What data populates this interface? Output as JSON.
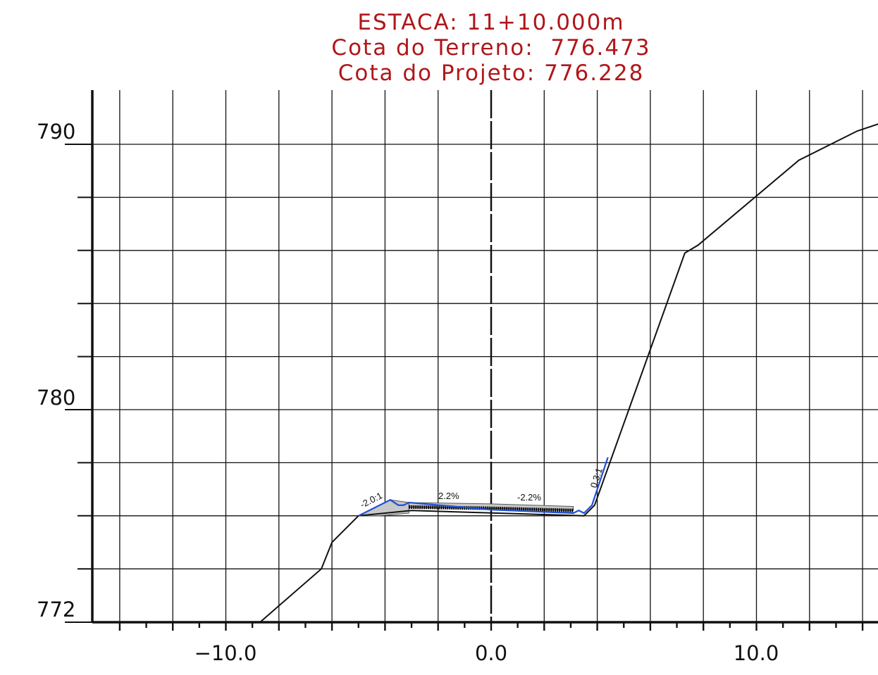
{
  "header": {
    "station": "ESTACA: 11+10.000m",
    "terrain_elevation": "Cota do Terreno:  776.473",
    "design_elevation": "Cota do Projeto: 776.228"
  },
  "axes": {
    "y_labels": [
      "790",
      "780",
      "772"
    ],
    "x_labels": [
      "−10.0",
      "0.0",
      "10.0"
    ]
  },
  "annotations": {
    "left_slope": "-2.0:1",
    "left_cross_slope": "2.2%",
    "right_cross_slope": "-2.2%",
    "right_slope": "0.3:1"
  },
  "colors": {
    "title": "#b0161a",
    "grid": "#111111",
    "terrain": "#111111",
    "design": "#1f4fd8",
    "pavement_fill": "#c8c8c8"
  },
  "chart_data": {
    "type": "cross-section",
    "xlim": [
      -15,
      15
    ],
    "ylim": [
      772,
      792
    ],
    "x_ticks": [
      -10,
      0,
      10
    ],
    "y_ticks": [
      772,
      780,
      790
    ],
    "grid": true,
    "terrain": {
      "x": [
        -8.7,
        -6.4,
        -6.0,
        -5.0,
        -3.0,
        3.5,
        3.9,
        7.3,
        7.8,
        11.6,
        13.8,
        15.0
      ],
      "y": [
        772.0,
        774.0,
        775.0,
        776.0,
        776.2,
        776.0,
        776.4,
        785.9,
        786.2,
        789.4,
        790.5,
        790.9
      ]
    },
    "design": {
      "x": [
        -5.0,
        -3.8,
        -3.5,
        -3.3,
        -3.1,
        0.0,
        3.1,
        3.3,
        3.5,
        3.8,
        4.4
      ],
      "y": [
        776.0,
        776.6,
        776.4,
        776.4,
        776.5,
        776.228,
        776.1,
        776.2,
        776.1,
        776.4,
        778.2
      ]
    },
    "station": "11+10.000",
    "terrain_elevation": 776.473,
    "design_elevation": 776.228,
    "left_slope": "-2.0:1",
    "right_slope": "0.3:1",
    "cross_slopes": [
      "2.2%",
      "-2.2%"
    ]
  }
}
